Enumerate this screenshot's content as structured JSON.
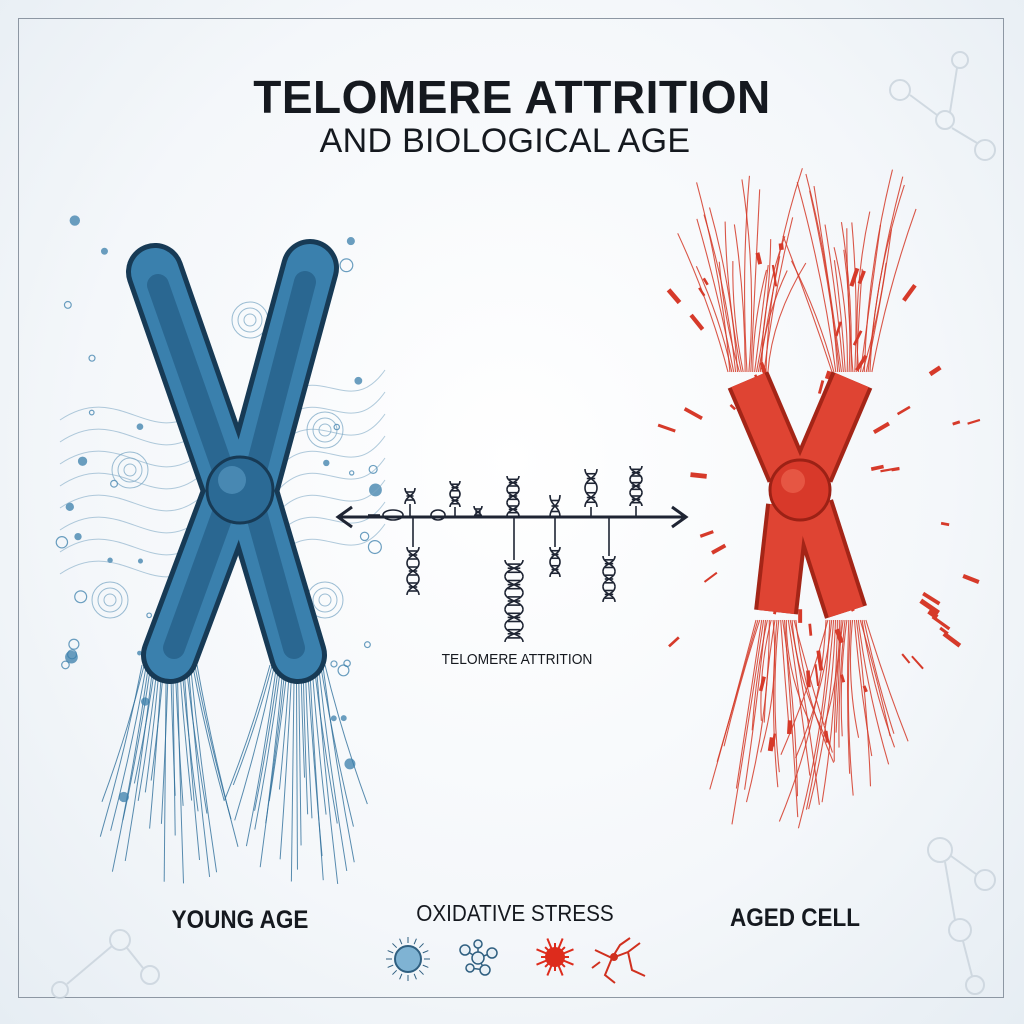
{
  "header": {
    "title": "TELOMERE ATTRITION",
    "subtitle": "AND BIOLOGICAL AGE"
  },
  "timeline": {
    "label": "TELOMERE ATTRITION",
    "icon": "dna-helix-icon"
  },
  "labels": {
    "young": "YOUNG AGE",
    "oxidative": "OXIDATIVE STRESS",
    "aged": "AGED CELL"
  },
  "oxidative_icons": [
    "cell-icon",
    "molecule-icon",
    "free-radical-icon",
    "damaged-neuron-icon"
  ],
  "colors": {
    "young": "#2f6f9b",
    "aged": "#d63a2a",
    "text": "#15191f",
    "background": "#f3f6f9"
  }
}
